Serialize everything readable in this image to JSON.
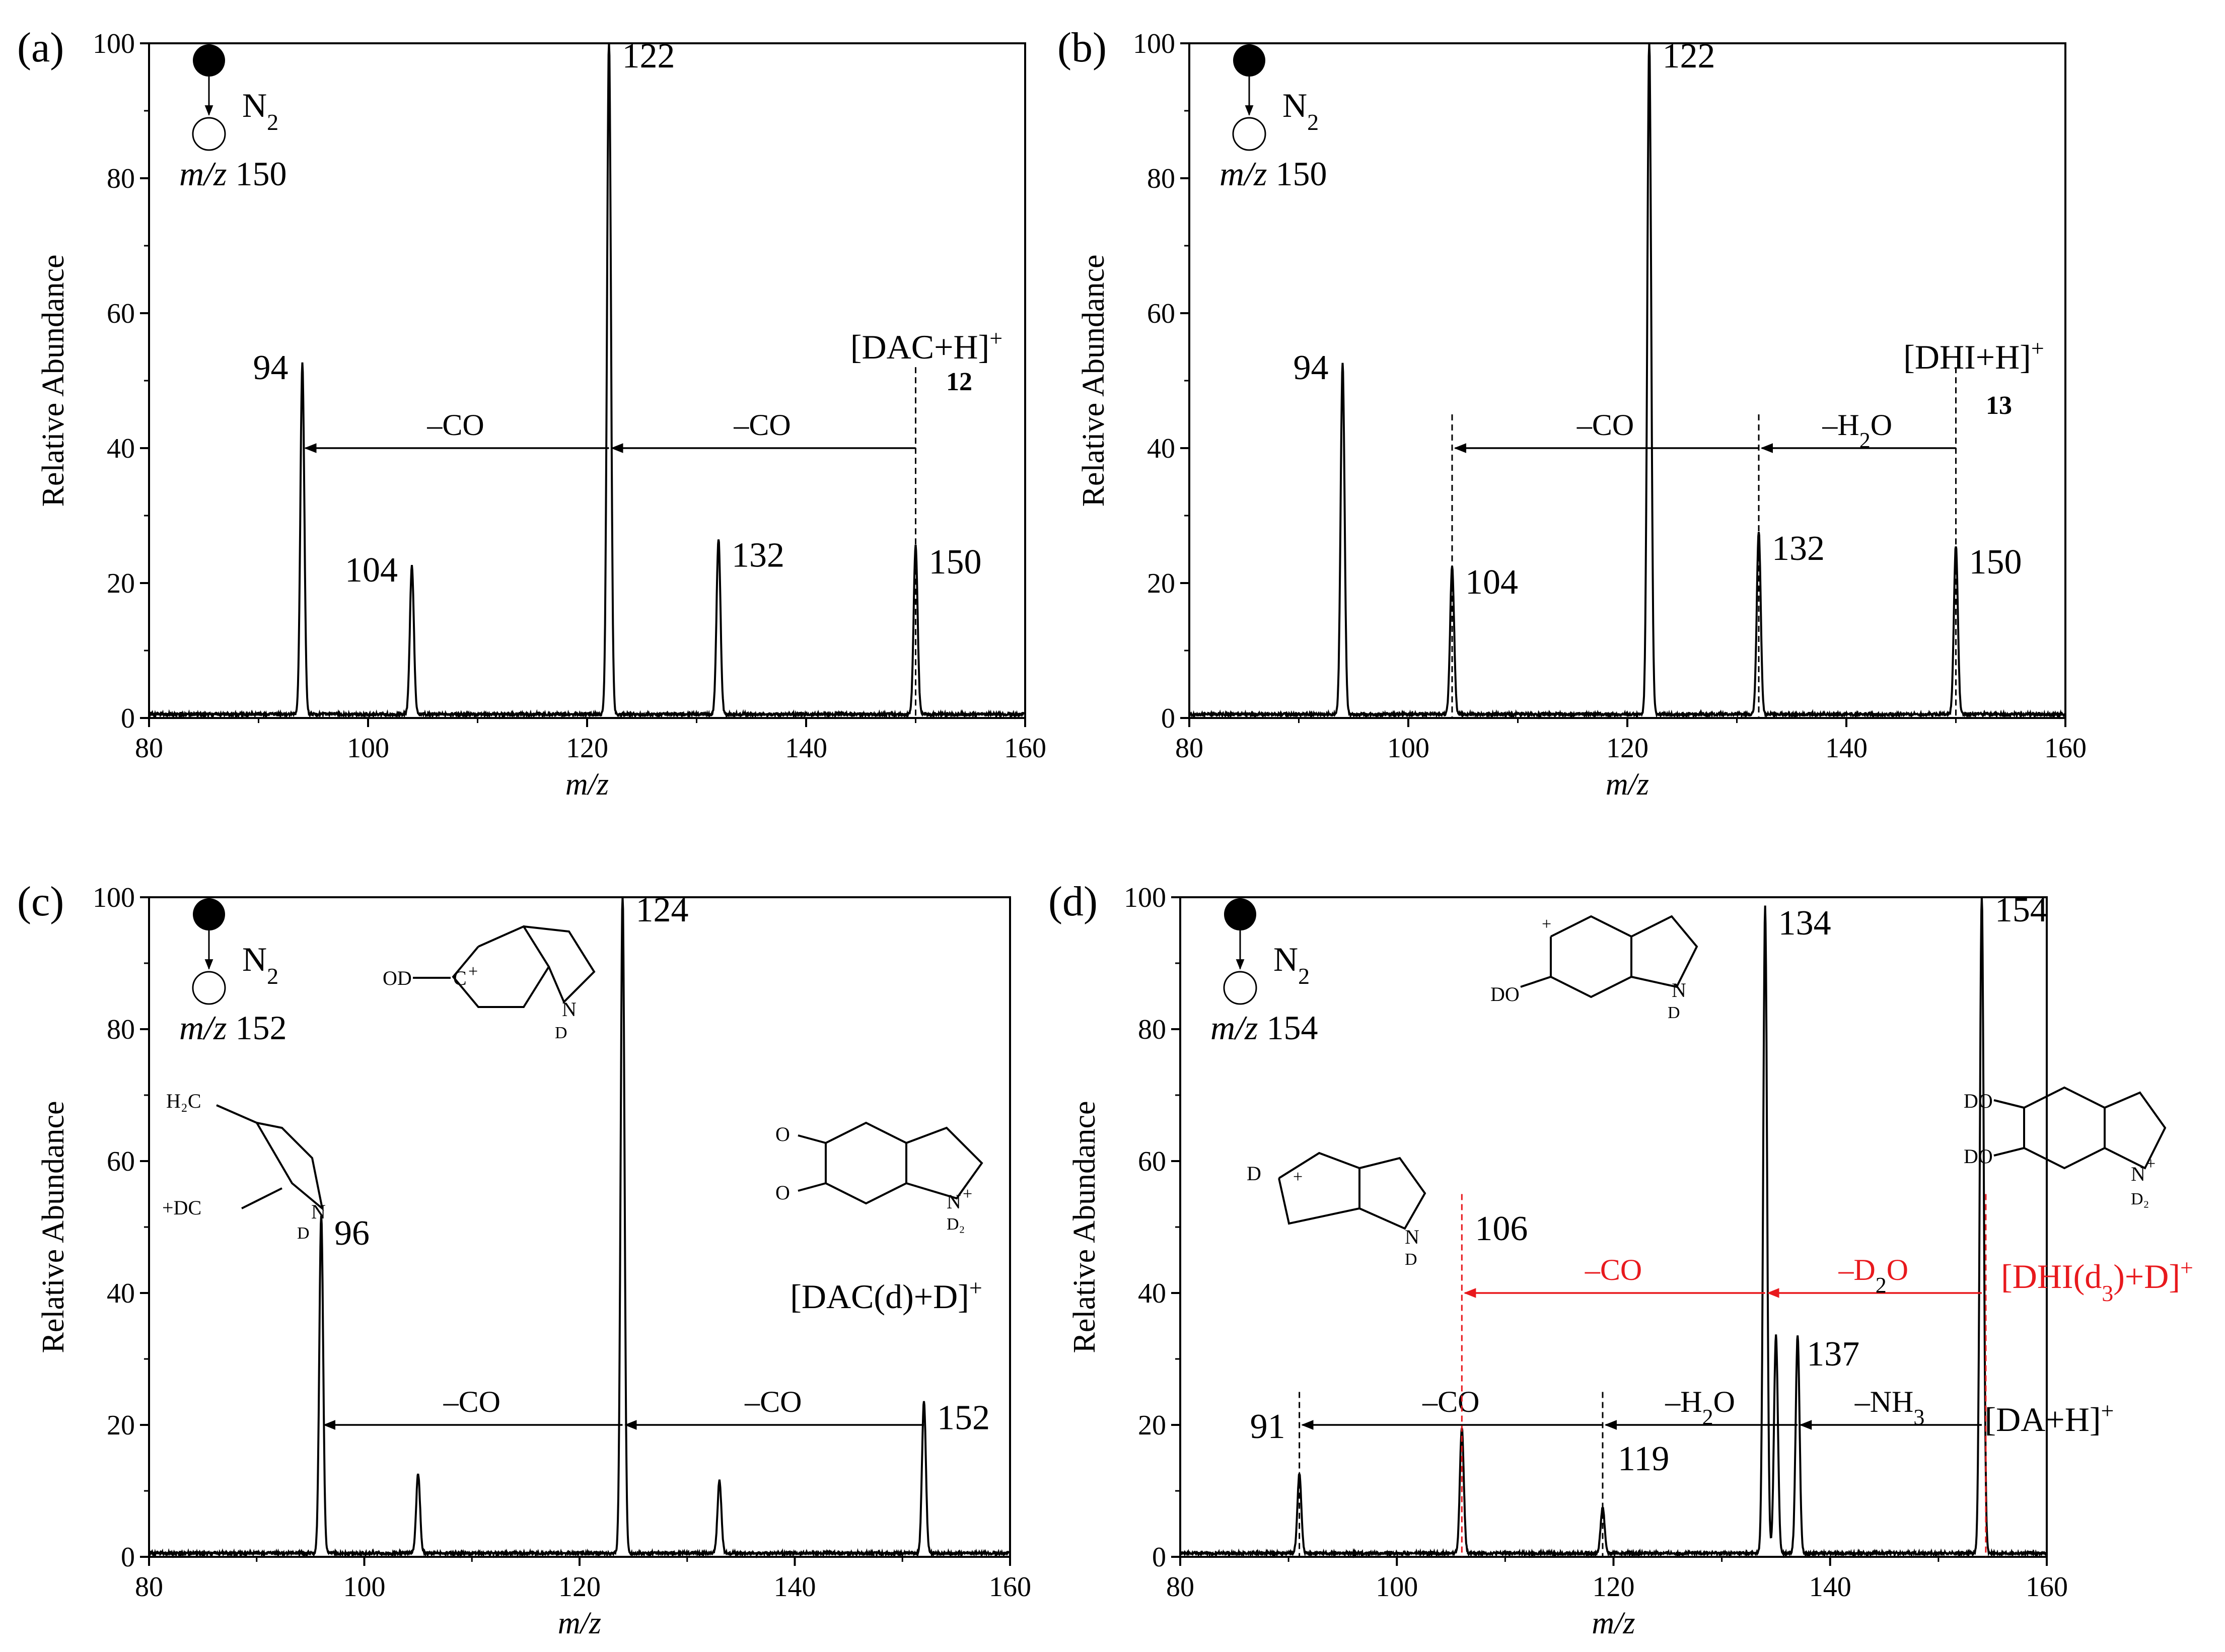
{
  "chart_data": [
    {
      "type": "line",
      "panel_label": "(a)",
      "ms_label": {
        "prefix": "m/z",
        "value": "150"
      },
      "gas": {
        "main": "N",
        "sub": "2"
      },
      "xlabel": "m/z",
      "ylabel": "Relative Abundance",
      "xlim": [
        80,
        160
      ],
      "ylim": [
        0,
        100
      ],
      "xticks": [
        80,
        100,
        120,
        140,
        160
      ],
      "yticks": [
        0,
        20,
        40,
        60,
        80,
        100
      ],
      "peaks": [
        {
          "mz": 94,
          "abundance": 52,
          "label": "94"
        },
        {
          "mz": 104,
          "abundance": 22,
          "label": "104"
        },
        {
          "mz": 122,
          "abundance": 100,
          "label": "122"
        },
        {
          "mz": 132,
          "abundance": 26,
          "label": "132"
        },
        {
          "mz": 150,
          "abundance": 25,
          "label": "150"
        }
      ],
      "ion_label": {
        "text": "[DAC+H]",
        "sup": "+",
        "compound": "12"
      },
      "losses": [
        {
          "from": 150,
          "to": 122,
          "level": 40,
          "label": "–CO",
          "color": "#000000"
        },
        {
          "from": 122,
          "to": 94,
          "level": 40,
          "label": "–CO",
          "color": "#000000"
        }
      ]
    },
    {
      "type": "line",
      "panel_label": "(b)",
      "ms_label": {
        "prefix": "m/z",
        "value": "150"
      },
      "gas": {
        "main": "N",
        "sub": "2"
      },
      "xlabel": "m/z",
      "ylabel": "Relative Abundance",
      "xlim": [
        80,
        160
      ],
      "ylim": [
        0,
        100
      ],
      "xticks": [
        80,
        100,
        120,
        140,
        160
      ],
      "yticks": [
        0,
        20,
        40,
        60,
        80,
        100
      ],
      "peaks": [
        {
          "mz": 94,
          "abundance": 52,
          "label": "94"
        },
        {
          "mz": 104,
          "abundance": 22,
          "label": "104"
        },
        {
          "mz": 122,
          "abundance": 100,
          "label": "122"
        },
        {
          "mz": 132,
          "abundance": 27,
          "label": "132"
        },
        {
          "mz": 150,
          "abundance": 25,
          "label": "150"
        }
      ],
      "ion_label": {
        "text": "[DHI+H]",
        "sup": "+",
        "compound": "13"
      },
      "losses": [
        {
          "from": 150,
          "to": 132,
          "level": 40,
          "label": "–H2O",
          "color": "#000000"
        },
        {
          "from": 132,
          "to": 104,
          "level": 40,
          "label": "–CO",
          "color": "#000000"
        }
      ]
    },
    {
      "type": "line",
      "panel_label": "(c)",
      "ms_label": {
        "prefix": "m/z",
        "value": "152"
      },
      "gas": {
        "main": "N",
        "sub": "2"
      },
      "xlabel": "m/z",
      "ylabel": "Relative Abundance",
      "xlim": [
        80,
        160
      ],
      "ylim": [
        0,
        100
      ],
      "xticks": [
        80,
        100,
        120,
        140,
        160
      ],
      "yticks": [
        0,
        20,
        40,
        60,
        80,
        100
      ],
      "peaks": [
        {
          "mz": 96,
          "abundance": 51,
          "label": "96"
        },
        {
          "mz": 105,
          "abundance": 12,
          "label": ""
        },
        {
          "mz": 124,
          "abundance": 100,
          "label": "124"
        },
        {
          "mz": 133,
          "abundance": 11,
          "label": ""
        },
        {
          "mz": 152,
          "abundance": 23,
          "label": "152"
        }
      ],
      "ion_label": {
        "text": "[DAC(d)+D]",
        "sup": "+"
      },
      "losses": [
        {
          "from": 152,
          "to": 124,
          "level": 20,
          "label": "–CO",
          "color": "#000000"
        },
        {
          "from": 124,
          "to": 96,
          "level": 20,
          "label": "–CO",
          "color": "#000000"
        }
      ]
    },
    {
      "type": "line",
      "panel_label": "(d)",
      "ms_label": {
        "prefix": "m/z",
        "value": "154"
      },
      "gas": {
        "main": "N",
        "sub": "2"
      },
      "xlabel": "m/z",
      "ylabel": "Relative Abundance",
      "xlim": [
        80,
        160
      ],
      "ylim": [
        0,
        100
      ],
      "xticks": [
        80,
        100,
        120,
        140,
        160
      ],
      "yticks": [
        0,
        20,
        40,
        60,
        80,
        100
      ],
      "peaks": [
        {
          "mz": 91,
          "abundance": 12,
          "label": "91"
        },
        {
          "mz": 106,
          "abundance": 19,
          "label": "106"
        },
        {
          "mz": 119,
          "abundance": 7,
          "label": "119"
        },
        {
          "mz": 134,
          "abundance": 98,
          "label": "134"
        },
        {
          "mz": 135,
          "abundance": 33,
          "label": ""
        },
        {
          "mz": 137,
          "abundance": 33,
          "label": "137"
        },
        {
          "mz": 154,
          "abundance": 100,
          "label": "154"
        }
      ],
      "ion_label_red": {
        "text": "[DHI(d",
        "sub": "3",
        "tail": ")+D]",
        "sup": "+"
      },
      "ion_label": {
        "text": "[DA+H]",
        "sup": "+"
      },
      "losses": [
        {
          "from": 154,
          "to": 134,
          "level": 40,
          "label": "–D2O",
          "color": "#e8191d"
        },
        {
          "from": 134,
          "to": 106,
          "level": 40,
          "label": "–CO",
          "color": "#e8191d"
        },
        {
          "from": 154,
          "to": 137,
          "level": 20,
          "label": "–NH3",
          "color": "#000000"
        },
        {
          "from": 137,
          "to": 119,
          "level": 20,
          "label": "–H2O",
          "color": "#000000"
        },
        {
          "from": 119,
          "to": 91,
          "level": 20,
          "label": "–CO",
          "color": "#000000"
        }
      ]
    }
  ]
}
